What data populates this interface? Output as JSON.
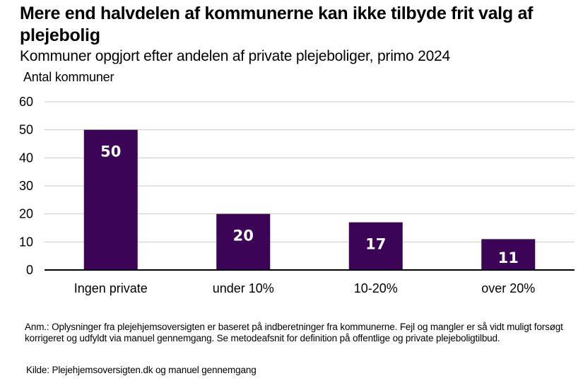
{
  "title": "Mere end halvdelen af kommunerne kan ikke tilbyde frit valg af plejebolig",
  "subtitle": "Kommuner opgjort efter andelen af private plejeboliger, primo 2024",
  "note": "Anm.: Oplysninger fra plejehjemsoversigten er baseret på indberetninger fra kommunerne. Fejl og mangler er så vidt muligt forsøgt korrigeret og udfyldt via manuel gennemgang. Se metodeafsnit for definition på offentlige og private plejeboligtilbud.",
  "source": "Kilde: Plejehjemsoversigten.dk og manuel gennemgang",
  "colors": {
    "bar": "#3b0456",
    "grid": "#c8c8c8",
    "axis": "#000000",
    "label": "#ffffff"
  },
  "chart_data": {
    "type": "bar",
    "title": "Mere end halvdelen af kommunerne kan ikke tilbyde frit valg af plejebolig",
    "subtitle": "Kommuner opgjort efter andelen af private plejeboliger, primo 2024",
    "xlabel": "",
    "ylabel": "Antal kommuner",
    "categories": [
      "Ingen private",
      "under 10%",
      "10-20%",
      "over 20%"
    ],
    "values": [
      50,
      20,
      17,
      11
    ],
    "data_labels": [
      "50",
      "20",
      "17",
      "11"
    ],
    "ylim": [
      0,
      60
    ],
    "yticks": [
      0,
      10,
      20,
      30,
      40,
      50,
      60
    ],
    "grid": true,
    "legend": "none"
  }
}
